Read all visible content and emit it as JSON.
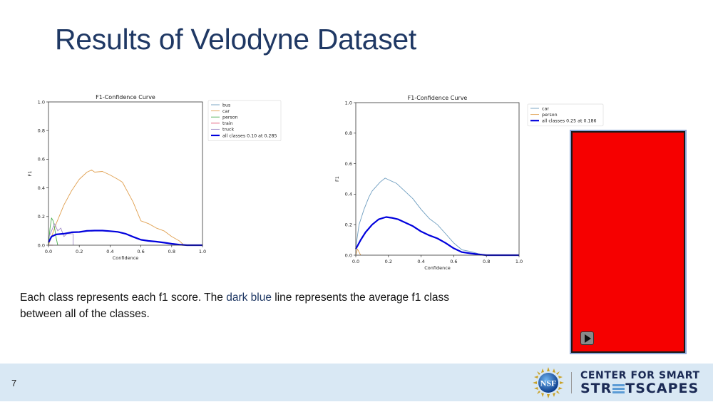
{
  "slide": {
    "title": "Results of Velodyne Dataset",
    "caption": {
      "part1": "Each class represents each  f1 score. The ",
      "highlight": "dark blue",
      "part2": " line represents the average f1 class between all of the classes."
    },
    "page_number": "7",
    "footer": {
      "logo_left": "NSF",
      "brand_line1": "CENTER FOR SMART",
      "brand_line2_a": "STR",
      "brand_line2_b": "TSCAPES"
    },
    "video": {
      "placeholder_color": "#f60000",
      "play_button_label": "play"
    },
    "colors": {
      "title": "#1f3864",
      "footer_bg": "#d9e8f4",
      "highlight": "#1f3864"
    }
  },
  "chart_data": [
    {
      "type": "line",
      "title": "F1-Confidence Curve",
      "xlabel": "Confidence",
      "ylabel": "F1",
      "xlim": [
        0.0,
        1.0
      ],
      "ylim": [
        0.0,
        1.0
      ],
      "xticks": [
        "0.0",
        "0.2",
        "0.4",
        "0.6",
        "0.8",
        "1.0"
      ],
      "yticks": [
        "0.0",
        "0.2",
        "0.4",
        "0.6",
        "0.8",
        "1.0"
      ],
      "grid": false,
      "legend_position": "outside upper right",
      "series": [
        {
          "name": "bus",
          "color": "#6f9ec0",
          "x": [
            0.0,
            0.02
          ],
          "values": [
            0.0,
            0.0
          ]
        },
        {
          "name": "car",
          "color": "#e0a050",
          "x": [
            0.0,
            0.05,
            0.1,
            0.15,
            0.2,
            0.25,
            0.28,
            0.3,
            0.35,
            0.4,
            0.45,
            0.48,
            0.5,
            0.55,
            0.6,
            0.65,
            0.7,
            0.75,
            0.8,
            0.85,
            0.88
          ],
          "values": [
            0.0,
            0.15,
            0.28,
            0.38,
            0.46,
            0.51,
            0.525,
            0.51,
            0.515,
            0.49,
            0.46,
            0.44,
            0.4,
            0.3,
            0.17,
            0.15,
            0.12,
            0.1,
            0.06,
            0.03,
            0.0
          ]
        },
        {
          "name": "person",
          "color": "#4caf50",
          "x": [
            0.0,
            0.01,
            0.02,
            0.03,
            0.04,
            0.05,
            0.06
          ],
          "values": [
            0.0,
            0.12,
            0.19,
            0.17,
            0.12,
            0.05,
            0.0
          ]
        },
        {
          "name": "train",
          "color": "#e05070",
          "x": [
            0.0,
            0.03
          ],
          "values": [
            0.0,
            0.0
          ]
        },
        {
          "name": "truck",
          "color": "#a08cc8",
          "x": [
            0.0,
            0.02,
            0.04,
            0.06,
            0.08,
            0.1,
            0.12,
            0.14,
            0.16,
            0.16
          ],
          "values": [
            0.05,
            0.1,
            0.15,
            0.1,
            0.12,
            0.06,
            0.08,
            0.08,
            0.08,
            0.0
          ]
        },
        {
          "name": "all classes 0.10 at 0.285",
          "color": "#0000dd",
          "x": [
            0.0,
            0.02,
            0.05,
            0.1,
            0.15,
            0.2,
            0.25,
            0.3,
            0.35,
            0.4,
            0.45,
            0.5,
            0.55,
            0.6,
            0.65,
            0.7,
            0.75,
            0.8,
            0.85,
            0.9,
            1.0
          ],
          "values": [
            0.02,
            0.06,
            0.075,
            0.08,
            0.09,
            0.092,
            0.1,
            0.102,
            0.102,
            0.098,
            0.093,
            0.08,
            0.058,
            0.038,
            0.03,
            0.025,
            0.018,
            0.01,
            0.004,
            0.0,
            0.0
          ]
        }
      ]
    },
    {
      "type": "line",
      "title": "F1-Confidence Curve",
      "xlabel": "Confidence",
      "ylabel": "F1",
      "xlim": [
        0.0,
        1.0
      ],
      "ylim": [
        0.0,
        1.0
      ],
      "xticks": [
        "0.0",
        "0.2",
        "0.4",
        "0.6",
        "0.8",
        "1.0"
      ],
      "yticks": [
        "0.0",
        "0.2",
        "0.4",
        "0.6",
        "0.8",
        "1.0"
      ],
      "grid": false,
      "legend_position": "outside upper right",
      "series": [
        {
          "name": "car",
          "color": "#6f9ec0",
          "x": [
            0.0,
            0.02,
            0.05,
            0.08,
            0.1,
            0.15,
            0.18,
            0.2,
            0.25,
            0.3,
            0.35,
            0.4,
            0.45,
            0.5,
            0.55,
            0.6,
            0.65,
            0.7,
            0.75,
            0.8,
            1.0
          ],
          "values": [
            0.05,
            0.2,
            0.3,
            0.38,
            0.42,
            0.48,
            0.505,
            0.495,
            0.47,
            0.42,
            0.37,
            0.3,
            0.24,
            0.2,
            0.14,
            0.08,
            0.035,
            0.025,
            0.01,
            0.0,
            0.0
          ]
        },
        {
          "name": "person",
          "color": "#e0a050",
          "x": [
            0.0,
            0.01,
            0.02,
            0.03
          ],
          "values": [
            0.0,
            0.04,
            0.02,
            0.0
          ]
        },
        {
          "name": "all classes 0.25 at 0.186",
          "color": "#0000dd",
          "x": [
            0.0,
            0.03,
            0.06,
            0.1,
            0.14,
            0.186,
            0.22,
            0.26,
            0.3,
            0.35,
            0.4,
            0.45,
            0.5,
            0.55,
            0.6,
            0.65,
            0.7,
            0.75,
            0.8,
            1.0
          ],
          "values": [
            0.04,
            0.1,
            0.15,
            0.2,
            0.235,
            0.25,
            0.245,
            0.235,
            0.215,
            0.19,
            0.155,
            0.13,
            0.11,
            0.08,
            0.045,
            0.02,
            0.012,
            0.005,
            0.0,
            0.0
          ]
        }
      ]
    }
  ]
}
